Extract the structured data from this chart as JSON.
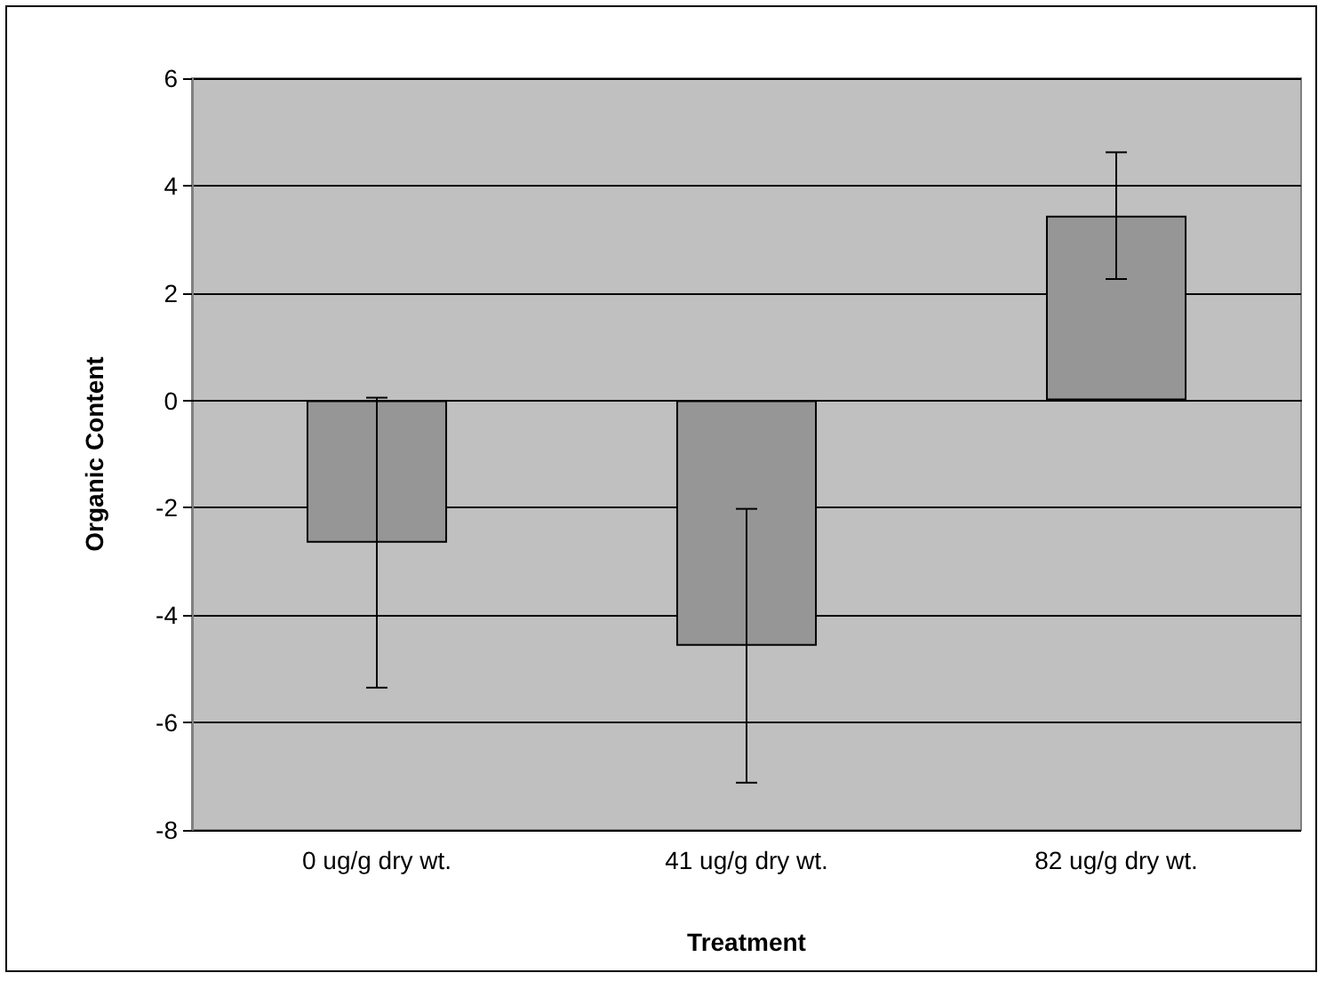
{
  "chart_data": {
    "type": "bar",
    "xlabel": "Treatment",
    "ylabel": "Organic Content",
    "categories": [
      "0 ug/g dry wt.",
      "41 ug/g dry wt.",
      "82 ug/g dry wt."
    ],
    "values": [
      -2.65,
      -4.57,
      3.44
    ],
    "errors": [
      2.7,
      2.55,
      1.18
    ],
    "color": "#969696",
    "ylim": [
      -8,
      6
    ],
    "yticks": [
      -8,
      -6,
      -4,
      -2,
      0,
      2,
      4,
      6
    ],
    "grid": "y"
  }
}
